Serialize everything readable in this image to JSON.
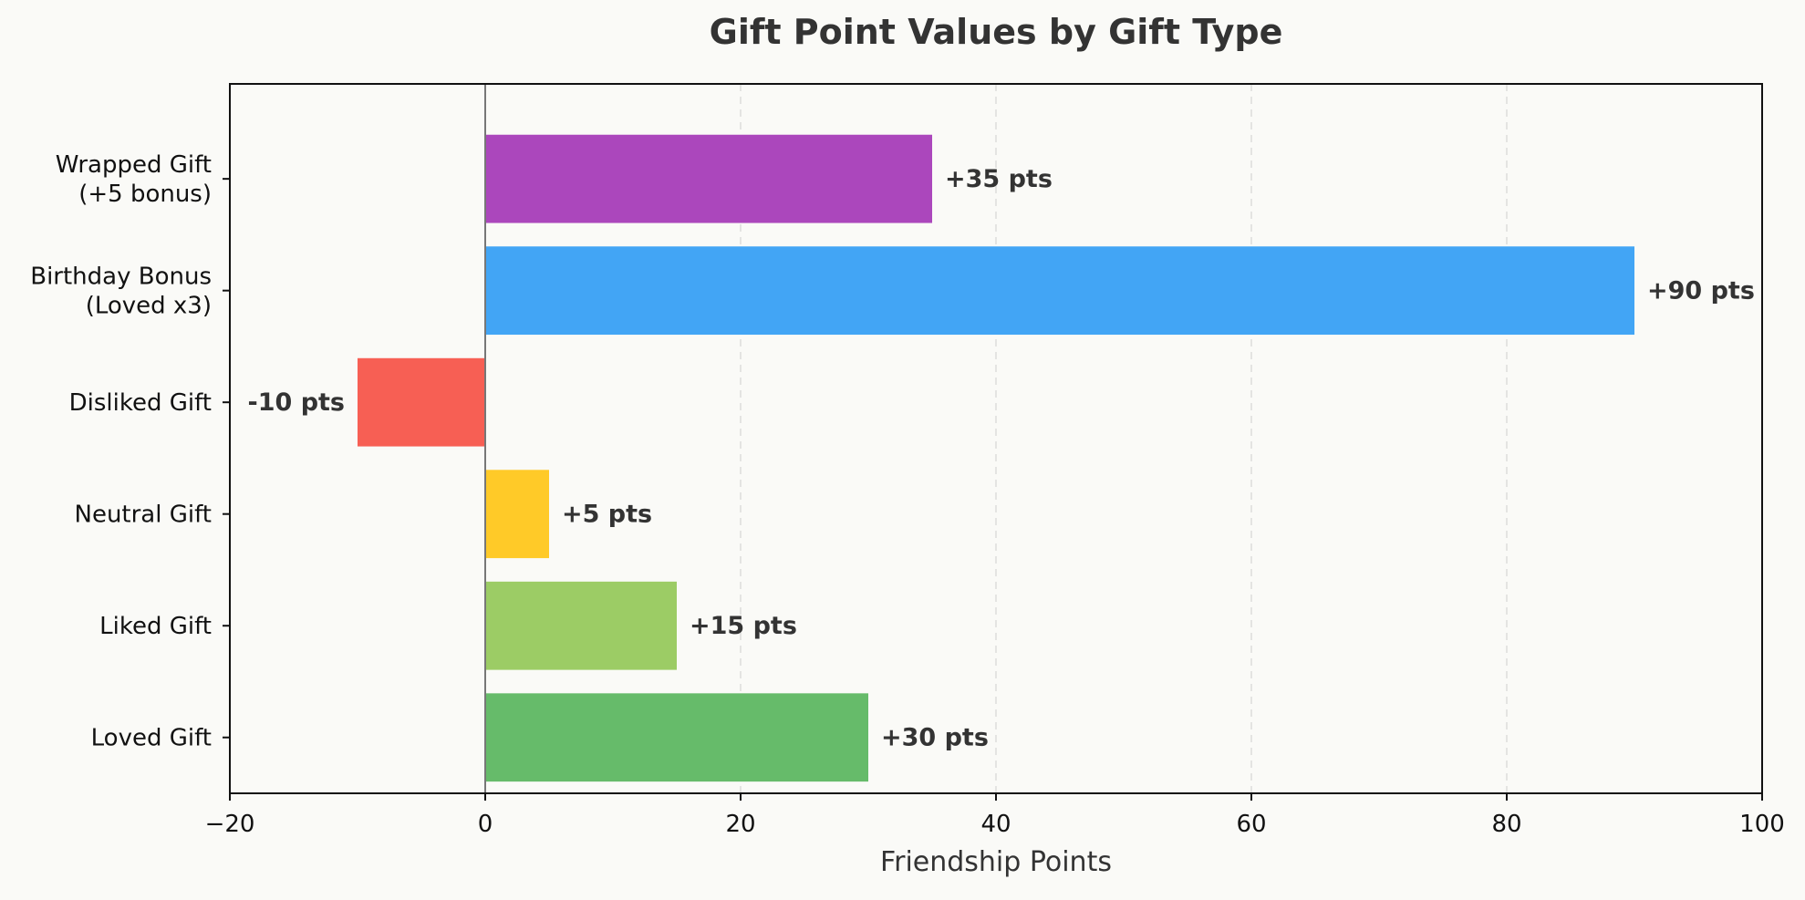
{
  "chart_data": {
    "type": "bar",
    "orientation": "horizontal",
    "title": "Gift Point Values by Gift Type",
    "xlabel": "Friendship Points",
    "ylabel": "",
    "xlim": [
      -20,
      100
    ],
    "xticks": [
      -20,
      0,
      20,
      40,
      60,
      80,
      100
    ],
    "xtick_labels": [
      "−20",
      "0",
      "20",
      "40",
      "60",
      "80",
      "100"
    ],
    "grid": "x-axis dashed",
    "categories": [
      "Wrapped Gift\n(+5 bonus)",
      "Birthday Bonus\n(Loved x3)",
      "Disliked Gift",
      "Neutral Gift",
      "Liked Gift",
      "Loved Gift"
    ],
    "values": [
      35,
      90,
      -10,
      5,
      15,
      30
    ],
    "data_labels": [
      "+35 pts",
      "+90 pts",
      "-10 pts",
      "+5 pts",
      "+15 pts",
      "+30 pts"
    ],
    "colors": [
      "#ab47bc",
      "#42a5f5",
      "#f75f54",
      "#ffca28",
      "#9ccc65",
      "#66bb6a"
    ]
  }
}
